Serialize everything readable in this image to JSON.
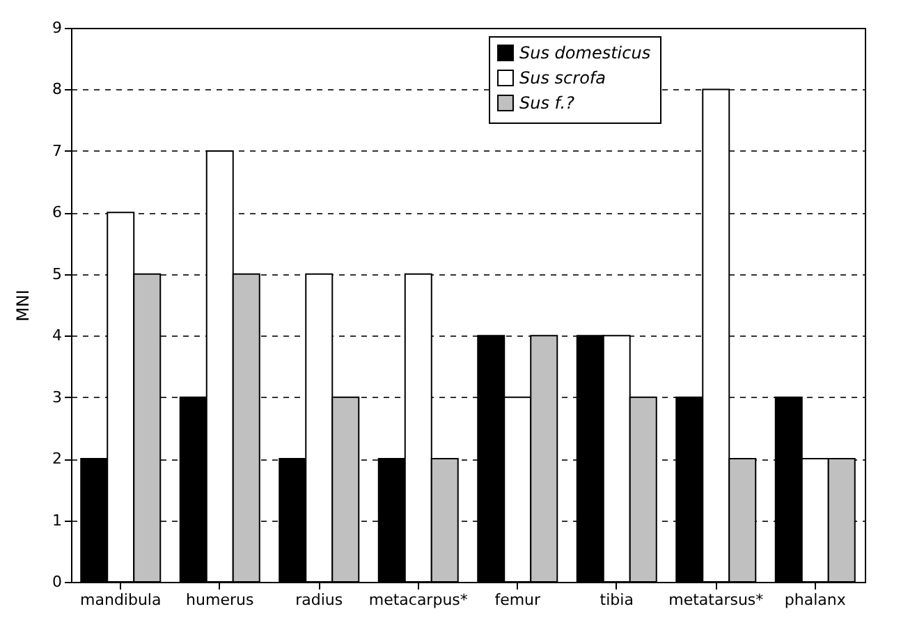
{
  "chart_data": {
    "type": "bar",
    "ylabel": "MNI",
    "categories": [
      "mandibula",
      "humerus",
      "radius",
      "metacarpus*",
      "femur",
      "tibia",
      "metatarsus*",
      "phalanx"
    ],
    "series": [
      {
        "name": "Sus domesticus",
        "color": "#000000",
        "values": [
          2,
          3,
          2,
          2,
          4,
          4,
          3,
          3
        ]
      },
      {
        "name": "Sus scrofa",
        "color": "#ffffff",
        "values": [
          6,
          7,
          5,
          5,
          3,
          4,
          8,
          2
        ]
      },
      {
        "name": "Sus f.?",
        "color": "#c0c0c0",
        "values": [
          5,
          5,
          3,
          2,
          4,
          3,
          2,
          2
        ]
      }
    ],
    "ylim": [
      0,
      9
    ],
    "yticks": [
      0,
      1,
      2,
      3,
      4,
      5,
      6,
      7,
      8,
      9
    ],
    "grid": "y",
    "legend": "top right"
  }
}
